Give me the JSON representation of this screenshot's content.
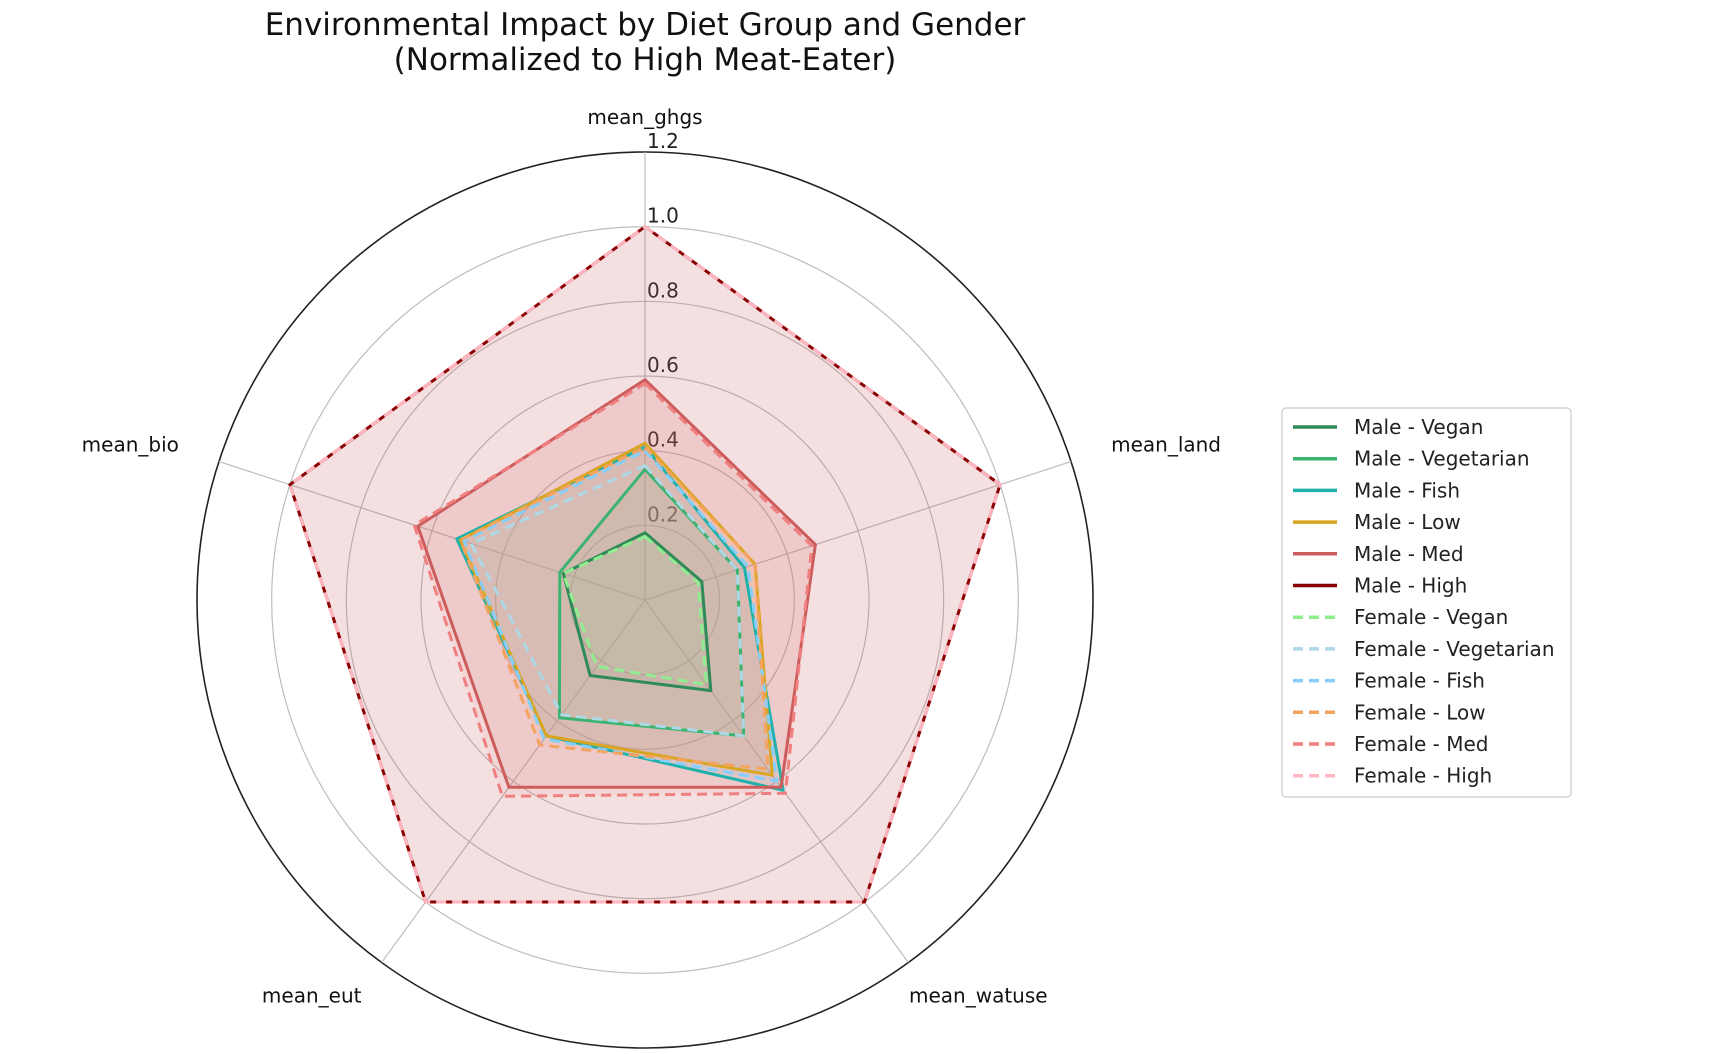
{
  "chart_data": {
    "type": "radar",
    "title": "Environmental Impact by Diet Group and Gender",
    "subtitle": "(Normalized to High Meat-Eater)",
    "axes": [
      "mean_ghgs",
      "mean_land",
      "mean_watuse",
      "mean_eut",
      "mean_bio"
    ],
    "rlim": [
      0,
      1.2
    ],
    "rticks": [
      0.2,
      0.4,
      0.6,
      0.8,
      1.0,
      1.2
    ],
    "rtick_labels": [
      "0.2",
      "0.4",
      "0.6",
      "0.8",
      "1.0",
      "1.2"
    ],
    "grid": true,
    "legend_position": "right",
    "series": [
      {
        "name": "Male - Vegan",
        "values": [
          0.18,
          0.16,
          0.3,
          0.25,
          0.23
        ],
        "color": "#2e8b57",
        "dash": false
      },
      {
        "name": "Male - Vegetarian",
        "values": [
          0.35,
          0.26,
          0.45,
          0.39,
          0.24
        ],
        "color": "#3cb371",
        "dash": false
      },
      {
        "name": "Male - Fish",
        "values": [
          0.41,
          0.28,
          0.63,
          0.45,
          0.53
        ],
        "color": "#20b2aa",
        "dash": false
      },
      {
        "name": "Male - Low",
        "values": [
          0.42,
          0.31,
          0.58,
          0.45,
          0.52
        ],
        "color": "#daa520",
        "dash": false
      },
      {
        "name": "Male - Med",
        "values": [
          0.59,
          0.48,
          0.62,
          0.62,
          0.64
        ],
        "color": "#cd5c5c",
        "dash": false
      },
      {
        "name": "Male - High",
        "values": [
          1.0,
          1.0,
          1.0,
          1.0,
          1.0
        ],
        "color": "#8b0000",
        "dash": false
      },
      {
        "name": "Female - Vegan",
        "values": [
          0.17,
          0.15,
          0.28,
          0.22,
          0.23
        ],
        "color": "#90ee90",
        "dash": true
      },
      {
        "name": "Female - Vegetarian",
        "values": [
          0.36,
          0.26,
          0.45,
          0.38,
          0.49
        ],
        "color": "#add8e6",
        "dash": true
      },
      {
        "name": "Female - Fish",
        "values": [
          0.4,
          0.29,
          0.6,
          0.46,
          0.51
        ],
        "color": "#87cefa",
        "dash": true
      },
      {
        "name": "Female - Low",
        "values": [
          0.41,
          0.31,
          0.56,
          0.48,
          0.52
        ],
        "color": "#f4a460",
        "dash": true
      },
      {
        "name": "Female - Med",
        "values": [
          0.58,
          0.47,
          0.64,
          0.65,
          0.65
        ],
        "color": "#f08080",
        "dash": true
      },
      {
        "name": "Female - High",
        "values": [
          1.0,
          1.0,
          1.0,
          1.0,
          1.0
        ],
        "color": "#ffb6c1",
        "dash": true
      }
    ]
  }
}
